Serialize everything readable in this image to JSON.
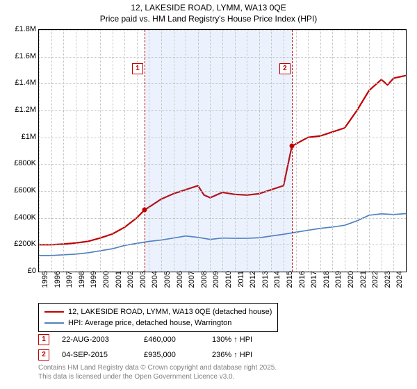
{
  "title": {
    "line1": "12, LAKESIDE ROAD, LYMM, WA13 0QE",
    "line2": "Price paid vs. HM Land Registry's House Price Index (HPI)"
  },
  "chart": {
    "type": "line",
    "background_color": "#ffffff",
    "grid_color": "#bfbfbf",
    "shaded_band_color": "rgba(100,149,237,0.12)",
    "ylim": [
      0,
      1800000
    ],
    "ytick_step": 200000,
    "yticks": [
      "£0",
      "£200K",
      "£400K",
      "£600K",
      "£800K",
      "£1M",
      "£1.2M",
      "£1.4M",
      "£1.6M",
      "£1.8M"
    ],
    "xlim": [
      1995,
      2025
    ],
    "xticks": [
      1995,
      1996,
      1997,
      1998,
      1999,
      2000,
      2001,
      2002,
      2003,
      2004,
      2005,
      2006,
      2007,
      2008,
      2009,
      2010,
      2011,
      2012,
      2013,
      2014,
      2015,
      2016,
      2017,
      2018,
      2019,
      2020,
      2021,
      2022,
      2023,
      2024
    ],
    "shaded_ranges": [
      [
        2003.64,
        2015.68
      ]
    ],
    "series": [
      {
        "key": "price_paid",
        "color": "#c00000",
        "width": 2.2,
        "points": [
          [
            1995,
            200000
          ],
          [
            1996,
            200000
          ],
          [
            1997,
            205000
          ],
          [
            1998,
            213000
          ],
          [
            1999,
            225000
          ],
          [
            2000,
            250000
          ],
          [
            2001,
            280000
          ],
          [
            2002,
            330000
          ],
          [
            2003,
            400000
          ],
          [
            2003.64,
            460000
          ],
          [
            2004,
            480000
          ],
          [
            2005,
            540000
          ],
          [
            2006,
            580000
          ],
          [
            2007,
            610000
          ],
          [
            2008,
            640000
          ],
          [
            2008.5,
            570000
          ],
          [
            2009,
            550000
          ],
          [
            2010,
            590000
          ],
          [
            2011,
            575000
          ],
          [
            2012,
            570000
          ],
          [
            2013,
            580000
          ],
          [
            2014,
            610000
          ],
          [
            2015,
            640000
          ],
          [
            2015.68,
            935000
          ],
          [
            2016,
            950000
          ],
          [
            2017,
            1000000
          ],
          [
            2018,
            1010000
          ],
          [
            2019,
            1040000
          ],
          [
            2020,
            1070000
          ],
          [
            2021,
            1200000
          ],
          [
            2022,
            1350000
          ],
          [
            2023,
            1430000
          ],
          [
            2023.5,
            1390000
          ],
          [
            2024,
            1440000
          ],
          [
            2025,
            1460000
          ]
        ]
      },
      {
        "key": "hpi",
        "color": "#4f81bd",
        "width": 1.7,
        "points": [
          [
            1995,
            120000
          ],
          [
            1996,
            120000
          ],
          [
            1997,
            125000
          ],
          [
            1998,
            130000
          ],
          [
            1999,
            140000
          ],
          [
            2000,
            155000
          ],
          [
            2001,
            170000
          ],
          [
            2002,
            195000
          ],
          [
            2003,
            210000
          ],
          [
            2004,
            225000
          ],
          [
            2005,
            235000
          ],
          [
            2006,
            250000
          ],
          [
            2007,
            265000
          ],
          [
            2008,
            255000
          ],
          [
            2009,
            240000
          ],
          [
            2010,
            250000
          ],
          [
            2011,
            248000
          ],
          [
            2012,
            248000
          ],
          [
            2013,
            252000
          ],
          [
            2014,
            265000
          ],
          [
            2015,
            278000
          ],
          [
            2016,
            293000
          ],
          [
            2017,
            308000
          ],
          [
            2018,
            322000
          ],
          [
            2019,
            332000
          ],
          [
            2020,
            345000
          ],
          [
            2021,
            378000
          ],
          [
            2022,
            420000
          ],
          [
            2023,
            430000
          ],
          [
            2024,
            425000
          ],
          [
            2025,
            432000
          ]
        ]
      }
    ],
    "markers": [
      {
        "n": "1",
        "x": 2003.64,
        "y": 460000,
        "label_y": 1550000
      },
      {
        "n": "2",
        "x": 2015.68,
        "y": 935000,
        "label_y": 1550000
      }
    ]
  },
  "legend": {
    "items": [
      {
        "color": "#c00000",
        "label": "12, LAKESIDE ROAD, LYMM, WA13 0QE (detached house)"
      },
      {
        "color": "#4f81bd",
        "label": "HPI: Average price, detached house, Warrington"
      }
    ]
  },
  "annotations": [
    {
      "n": "1",
      "date": "22-AUG-2003",
      "price": "£460,000",
      "pct": "130% ↑ HPI"
    },
    {
      "n": "2",
      "date": "04-SEP-2015",
      "price": "£935,000",
      "pct": "236% ↑ HPI"
    }
  ],
  "footer": {
    "line1": "Contains HM Land Registry data © Crown copyright and database right 2025.",
    "line2": "This data is licensed under the Open Government Licence v3.0."
  }
}
